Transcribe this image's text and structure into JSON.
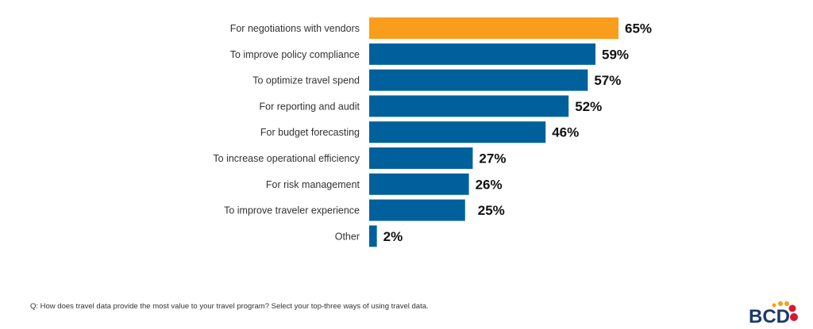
{
  "chart_data": {
    "type": "bar",
    "orientation": "horizontal",
    "categories": [
      "For negotiations with vendors",
      "To improve policy compliance",
      "To optimize travel spend",
      "For reporting and audit",
      "For budget forecasting",
      "To increase operational efficiency",
      "For risk management",
      "To improve traveler experience",
      "Other"
    ],
    "values": [
      65,
      59,
      57,
      52,
      46,
      27,
      26,
      25,
      2
    ],
    "value_labels": [
      "65%",
      "59%",
      "57%",
      "52%",
      "46%",
      "27%",
      "26%",
      "25%",
      "2%"
    ],
    "colors": [
      "#F99D1C",
      "#00609C",
      "#00609C",
      "#00609C",
      "#00609C",
      "#00609C",
      "#00609C",
      "#00609C",
      "#00609C"
    ],
    "xlim": [
      0,
      100
    ],
    "grid": false
  },
  "footer": {
    "question": "Q: How does travel data provide the most value to your travel program? Select your top-three ways of using travel data."
  },
  "logo": {
    "text": "BCD",
    "colors": [
      "#F99D1C",
      "#D7172F",
      "#1B3A6B"
    ]
  }
}
